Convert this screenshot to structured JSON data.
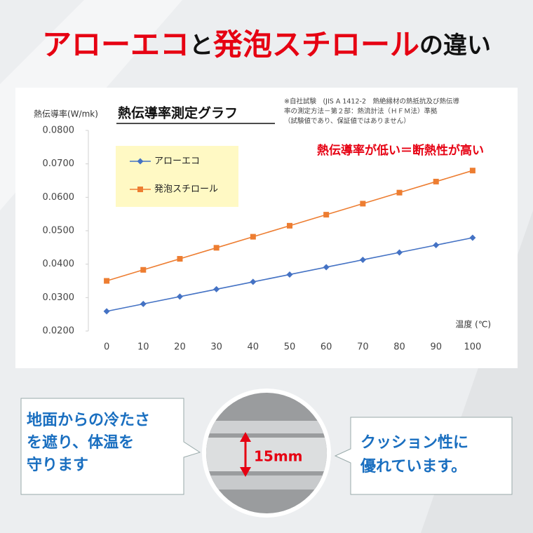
{
  "header": {
    "title_parts": [
      "アローエコ",
      "と",
      "発泡スチロール",
      "の違い"
    ]
  },
  "chart_data": {
    "type": "line",
    "title": "熱伝導率測定グラフ",
    "y_label": "熱伝導率(W/mk)",
    "x_label": "温度 (℃)",
    "note": [
      "※自社試験　(JIS A 1412-2　熱絶縁材の熱抵抗及び熱伝導",
      "率の測定方法－第２部：熱流計法（ＨＦＭ法）準拠",
      "（試験値であり、保証値ではありません）"
    ],
    "annotation": "熱伝導率が低い＝断熱性が高い",
    "x": [
      0,
      10,
      20,
      30,
      40,
      50,
      60,
      70,
      80,
      90,
      100
    ],
    "series": [
      {
        "name": "アローエコ",
        "color": "#4472c4",
        "marker": "diamond",
        "values": [
          0.0259,
          0.0281,
          0.0303,
          0.0325,
          0.0347,
          0.0369,
          0.0391,
          0.0413,
          0.0435,
          0.0457,
          0.0479
        ]
      },
      {
        "name": "発泡スチロール",
        "color": "#ed7d31",
        "marker": "square",
        "values": [
          0.035,
          0.0383,
          0.0416,
          0.0449,
          0.0482,
          0.0515,
          0.0548,
          0.0581,
          0.0614,
          0.0647,
          0.068
        ]
      }
    ],
    "xlim": [
      -5,
      105
    ],
    "xticks": [
      0,
      10,
      20,
      30,
      40,
      50,
      60,
      70,
      80,
      90,
      100
    ],
    "ylim": [
      0.02,
      0.08
    ],
    "yticks": [
      {
        "value": 0.08,
        "label": "0.0800"
      },
      {
        "value": 0.07,
        "label": "0.0700"
      },
      {
        "value": 0.06,
        "label": "0.0600"
      },
      {
        "value": 0.05,
        "label": "0.0500"
      },
      {
        "value": 0.04,
        "label": "0.0400"
      },
      {
        "value": 0.03,
        "label": "0.0300"
      },
      {
        "value": 0.02,
        "label": "0.0200"
      }
    ],
    "legend_color": "#fff9c4"
  },
  "callouts": {
    "left": [
      "地面からの冷たさ",
      "を遮り、体温を",
      "守ります"
    ],
    "right": [
      "クッション性に",
      "優れています。"
    ],
    "photo_label": "15mm"
  }
}
